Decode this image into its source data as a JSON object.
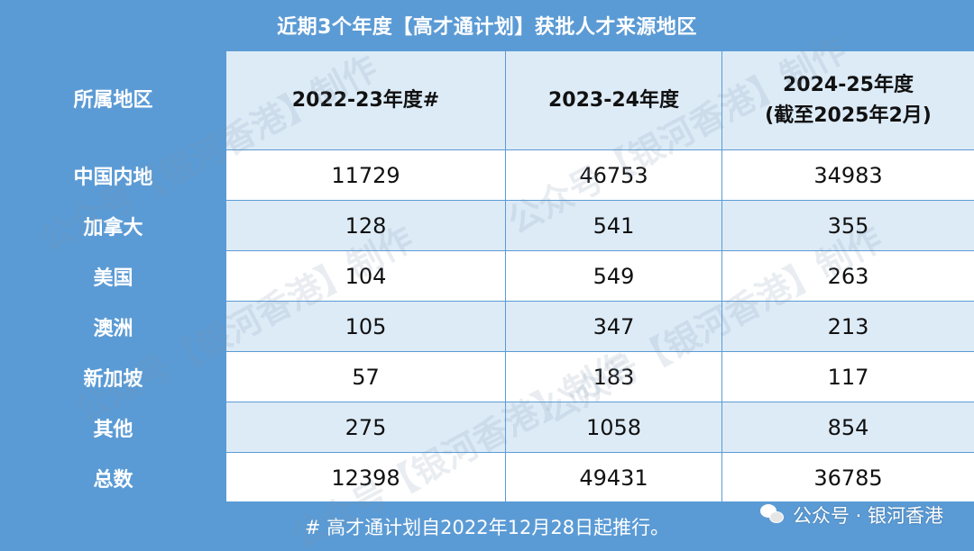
{
  "title": "近期3个年度【高才通计划】获批人才来源地区",
  "chart_data": {
    "type": "table",
    "columns": [
      "所属地区",
      "2022-23年度#",
      "2023-24年度",
      "2024-25年度",
      "(截至2025年2月)"
    ],
    "rows": [
      {
        "region": "中国内地",
        "values": [
          "11729",
          "46753",
          "34983"
        ]
      },
      {
        "region": "加拿大",
        "values": [
          "128",
          "541",
          "355"
        ]
      },
      {
        "region": "美国",
        "values": [
          "104",
          "549",
          "263"
        ]
      },
      {
        "region": "澳洲",
        "values": [
          "105",
          "347",
          "213"
        ]
      },
      {
        "region": "新加坡",
        "values": [
          "57",
          "183",
          "117"
        ]
      },
      {
        "region": "其他",
        "values": [
          "275",
          "1058",
          "854"
        ]
      },
      {
        "region": "总数",
        "values": [
          "12398",
          "49431",
          "36785"
        ]
      }
    ]
  },
  "footer_note": "#  高才通计划自2022年12月28日起推行。",
  "badge": {
    "icon": "wechat-icon",
    "text": "公众号 · 银河香港"
  },
  "watermarks": [
    "公众号【银河香港】制作"
  ],
  "colors": {
    "header_blue": "#5b9bd5",
    "light_blue": "#ddebf7",
    "white": "#ffffff"
  }
}
